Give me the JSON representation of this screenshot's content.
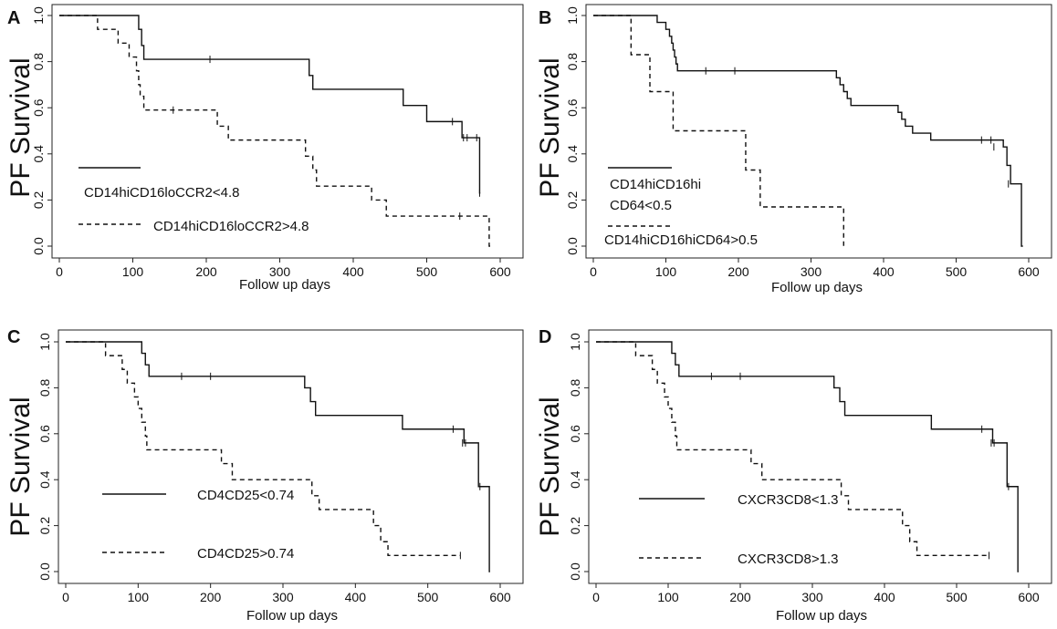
{
  "chart_data": [
    {
      "panel": "A",
      "type": "line",
      "subtype": "kaplan-meier",
      "ylabel": "PF Survival",
      "xlabel": "Follow up days",
      "xlim": [
        0,
        600
      ],
      "ylim": [
        0,
        1
      ],
      "xticks": [
        "0",
        "100",
        "200",
        "300",
        "400",
        "500",
        "600"
      ],
      "yticks": [
        "0.0",
        "0.2",
        "0.4",
        "0.6",
        "0.8",
        "1.0"
      ],
      "series": [
        {
          "name": "CD14hiCD16loCCR2<4.8",
          "dash": "solid",
          "steps": [
            [
              0,
              1.0
            ],
            [
              108,
              0.94
            ],
            [
              112,
              0.87
            ],
            [
              115,
              0.81
            ],
            [
              340,
              0.74
            ],
            [
              345,
              0.68
            ],
            [
              468,
              0.61
            ],
            [
              500,
              0.54
            ],
            [
              548,
              0.47
            ],
            [
              572,
              0.23
            ]
          ],
          "end": [
            573,
            0.23
          ],
          "censors": [
            [
              205,
              0.81
            ],
            [
              535,
              0.54
            ],
            [
              550,
              0.47
            ],
            [
              555,
              0.47
            ],
            [
              568,
              0.47
            ],
            [
              572,
              0.23
            ]
          ]
        },
        {
          "name": "CD14hiCD16loCCR2>4.8",
          "dash": "dashed",
          "steps": [
            [
              0,
              1.0
            ],
            [
              52,
              0.94
            ],
            [
              80,
              0.88
            ],
            [
              95,
              0.82
            ],
            [
              105,
              0.76
            ],
            [
              108,
              0.7
            ],
            [
              110,
              0.65
            ],
            [
              115,
              0.59
            ],
            [
              215,
              0.52
            ],
            [
              230,
              0.46
            ],
            [
              335,
              0.39
            ],
            [
              345,
              0.33
            ],
            [
              350,
              0.26
            ],
            [
              425,
              0.2
            ],
            [
              445,
              0.13
            ],
            [
              585,
              0.0
            ]
          ],
          "end": [
            590,
            0.0
          ],
          "censors": [
            [
              155,
              0.59
            ],
            [
              545,
              0.13
            ]
          ]
        }
      ]
    },
    {
      "panel": "B",
      "type": "line",
      "subtype": "kaplan-meier",
      "ylabel": "PF Survival",
      "xlabel": "Follow up days",
      "xlim": [
        0,
        600
      ],
      "ylim": [
        0,
        1
      ],
      "xticks": [
        "0",
        "100",
        "200",
        "300",
        "400",
        "500",
        "600"
      ],
      "yticks": [
        "0.0",
        "0.2",
        "0.4",
        "0.6",
        "0.8",
        "1.0"
      ],
      "series": [
        {
          "name": "CD14hiCD16hi CD64<0.5",
          "legend_lines": [
            "CD14hiCD16hi",
            "CD64<0.5"
          ],
          "dash": "solid",
          "steps": [
            [
              0,
              1.0
            ],
            [
              88,
              0.97
            ],
            [
              100,
              0.94
            ],
            [
              105,
              0.91
            ],
            [
              108,
              0.88
            ],
            [
              110,
              0.85
            ],
            [
              112,
              0.82
            ],
            [
              114,
              0.79
            ],
            [
              116,
              0.76
            ],
            [
              335,
              0.73
            ],
            [
              340,
              0.7
            ],
            [
              345,
              0.67
            ],
            [
              350,
              0.64
            ],
            [
              355,
              0.61
            ],
            [
              420,
              0.58
            ],
            [
              425,
              0.55
            ],
            [
              430,
              0.52
            ],
            [
              440,
              0.49
            ],
            [
              465,
              0.46
            ],
            [
              565,
              0.43
            ],
            [
              570,
              0.35
            ],
            [
              575,
              0.27
            ],
            [
              590,
              0.0
            ]
          ],
          "end": [
            592,
            0.0
          ],
          "censors": [
            [
              155,
              0.76
            ],
            [
              195,
              0.76
            ],
            [
              535,
              0.46
            ],
            [
              548,
              0.46
            ],
            [
              552,
              0.43
            ],
            [
              572,
              0.27
            ]
          ]
        },
        {
          "name": "CD14hiCD16hiCD64>0.5",
          "dash": "dashed",
          "steps": [
            [
              0,
              1.0
            ],
            [
              52,
              0.83
            ],
            [
              78,
              0.67
            ],
            [
              110,
              0.5
            ],
            [
              210,
              0.33
            ],
            [
              230,
              0.17
            ],
            [
              345,
              0.0
            ]
          ],
          "end": [
            346,
            0.0
          ],
          "censors": []
        }
      ]
    },
    {
      "panel": "C",
      "type": "line",
      "subtype": "kaplan-meier",
      "ylabel": "PF Survival",
      "xlabel": "Follow up days",
      "xlim": [
        0,
        600
      ],
      "ylim": [
        0,
        1
      ],
      "xticks": [
        "0",
        "100",
        "200",
        "300",
        "400",
        "500",
        "600"
      ],
      "yticks": [
        "0.0",
        "0.2",
        "0.4",
        "0.6",
        "0.8",
        "1.0"
      ],
      "series": [
        {
          "name": "CD4CD25<0.74",
          "dash": "solid",
          "steps": [
            [
              0,
              1.0
            ],
            [
              105,
              0.95
            ],
            [
              110,
              0.9
            ],
            [
              115,
              0.85
            ],
            [
              330,
              0.8
            ],
            [
              338,
              0.74
            ],
            [
              345,
              0.68
            ],
            [
              465,
              0.62
            ],
            [
              550,
              0.56
            ],
            [
              570,
              0.37
            ],
            [
              585,
              0.0
            ]
          ],
          "end": [
            586,
            0.0
          ],
          "censors": [
            [
              160,
              0.85
            ],
            [
              200,
              0.85
            ],
            [
              535,
              0.62
            ],
            [
              548,
              0.56
            ],
            [
              552,
              0.56
            ],
            [
              572,
              0.37
            ]
          ]
        },
        {
          "name": "CD4CD25>0.74",
          "dash": "dashed",
          "steps": [
            [
              0,
              1.0
            ],
            [
              55,
              0.94
            ],
            [
              78,
              0.88
            ],
            [
              85,
              0.82
            ],
            [
              95,
              0.76
            ],
            [
              100,
              0.71
            ],
            [
              105,
              0.65
            ],
            [
              110,
              0.59
            ],
            [
              112,
              0.53
            ],
            [
              215,
              0.47
            ],
            [
              230,
              0.4
            ],
            [
              340,
              0.33
            ],
            [
              350,
              0.27
            ],
            [
              425,
              0.2
            ],
            [
              435,
              0.13
            ],
            [
              445,
              0.07
            ]
          ],
          "end": [
            545,
            0.07
          ],
          "censors": [
            [
              545,
              0.07
            ]
          ]
        }
      ]
    },
    {
      "panel": "D",
      "type": "line",
      "subtype": "kaplan-meier",
      "ylabel": "PF Survival",
      "xlabel": "Follow up days",
      "xlim": [
        0,
        600
      ],
      "ylim": [
        0,
        1
      ],
      "xticks": [
        "0",
        "100",
        "200",
        "300",
        "400",
        "500",
        "600"
      ],
      "yticks": [
        "0.0",
        "0.2",
        "0.4",
        "0.6",
        "0.8",
        "1.0"
      ],
      "series": [
        {
          "name": "CXCR3CD8<1.3",
          "dash": "solid",
          "steps": [
            [
              0,
              1.0
            ],
            [
              105,
              0.95
            ],
            [
              110,
              0.9
            ],
            [
              115,
              0.85
            ],
            [
              330,
              0.8
            ],
            [
              338,
              0.74
            ],
            [
              345,
              0.68
            ],
            [
              465,
              0.62
            ],
            [
              550,
              0.56
            ],
            [
              570,
              0.37
            ],
            [
              585,
              0.0
            ]
          ],
          "end": [
            586,
            0.0
          ],
          "censors": [
            [
              160,
              0.85
            ],
            [
              200,
              0.85
            ],
            [
              535,
              0.62
            ],
            [
              548,
              0.56
            ],
            [
              552,
              0.56
            ],
            [
              572,
              0.37
            ]
          ]
        },
        {
          "name": "CXCR3CD8>1.3",
          "dash": "dashed",
          "steps": [
            [
              0,
              1.0
            ],
            [
              55,
              0.94
            ],
            [
              78,
              0.88
            ],
            [
              85,
              0.82
            ],
            [
              95,
              0.76
            ],
            [
              100,
              0.71
            ],
            [
              105,
              0.65
            ],
            [
              110,
              0.59
            ],
            [
              112,
              0.53
            ],
            [
              215,
              0.47
            ],
            [
              230,
              0.4
            ],
            [
              340,
              0.33
            ],
            [
              350,
              0.27
            ],
            [
              425,
              0.2
            ],
            [
              435,
              0.13
            ],
            [
              445,
              0.07
            ]
          ],
          "end": [
            545,
            0.07
          ],
          "censors": [
            [
              545,
              0.07
            ]
          ]
        }
      ]
    }
  ]
}
